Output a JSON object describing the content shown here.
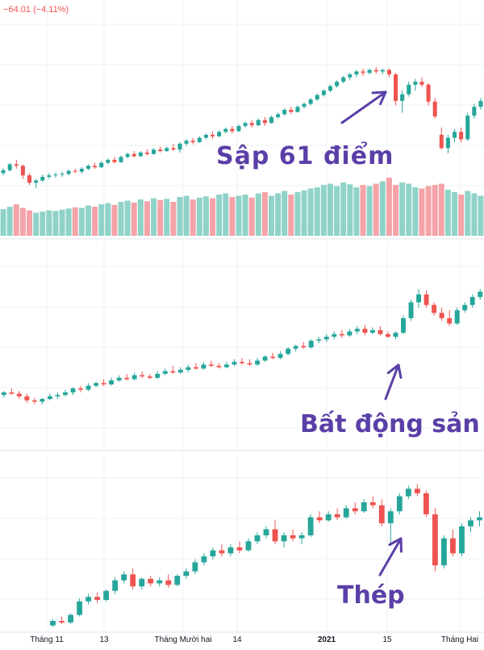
{
  "header": {
    "change_text": "−64.01 (−4.11%)"
  },
  "colors": {
    "up": "#26a69a",
    "down": "#ef5350",
    "vol_up": "#8fd3c8",
    "vol_down": "#f4a3a8",
    "annotation": "#5b3fa8",
    "grid": "#eef0f3",
    "separator": "#e0e3eb"
  },
  "annotations": [
    {
      "id": "crash",
      "text": "Sập 61 điểm"
    },
    {
      "id": "real-estate",
      "text": "Bất động sản"
    },
    {
      "id": "steel",
      "text": "Thép"
    }
  ],
  "x_axis": {
    "ticks": [
      "Tháng 11",
      "13",
      "Tháng Mười hai",
      "14",
      "2021",
      "15",
      "Tháng Hai"
    ],
    "bold_ticks": [
      "2021"
    ]
  },
  "chart_data": [
    {
      "type": "candlestick",
      "panel": "index",
      "title": "",
      "ylim": [
        1010,
        1205
      ],
      "values": [
        [
          1038,
          1045,
          1035,
          1042
        ],
        [
          1042,
          1052,
          1040,
          1050
        ],
        [
          1050,
          1056,
          1044,
          1048
        ],
        [
          1048,
          1050,
          1030,
          1035
        ],
        [
          1035,
          1038,
          1022,
          1025
        ],
        [
          1025,
          1030,
          1018,
          1028
        ],
        [
          1028,
          1036,
          1026,
          1033
        ],
        [
          1033,
          1038,
          1030,
          1035
        ],
        [
          1035,
          1039,
          1032,
          1036
        ],
        [
          1036,
          1040,
          1033,
          1037
        ],
        [
          1037,
          1043,
          1035,
          1041
        ],
        [
          1041,
          1044,
          1038,
          1040
        ],
        [
          1040,
          1046,
          1037,
          1044
        ],
        [
          1044,
          1050,
          1042,
          1048
        ],
        [
          1048,
          1052,
          1044,
          1046
        ],
        [
          1046,
          1054,
          1045,
          1052
        ],
        [
          1052,
          1058,
          1050,
          1056
        ],
        [
          1056,
          1060,
          1051,
          1053
        ],
        [
          1053,
          1062,
          1052,
          1060
        ],
        [
          1060,
          1066,
          1058,
          1064
        ],
        [
          1064,
          1068,
          1059,
          1061
        ],
        [
          1061,
          1068,
          1060,
          1066
        ],
        [
          1066,
          1070,
          1062,
          1064
        ],
        [
          1064,
          1072,
          1063,
          1070
        ],
        [
          1070,
          1074,
          1066,
          1068
        ],
        [
          1068,
          1074,
          1067,
          1072
        ],
        [
          1072,
          1078,
          1068,
          1070
        ],
        [
          1070,
          1080,
          1066,
          1078
        ],
        [
          1078,
          1084,
          1075,
          1082
        ],
        [
          1082,
          1086,
          1077,
          1080
        ],
        [
          1080,
          1088,
          1079,
          1086
        ],
        [
          1086,
          1092,
          1084,
          1090
        ],
        [
          1090,
          1094,
          1085,
          1088
        ],
        [
          1088,
          1096,
          1087,
          1094
        ],
        [
          1094,
          1100,
          1092,
          1098
        ],
        [
          1098,
          1102,
          1092,
          1095
        ],
        [
          1095,
          1104,
          1094,
          1102
        ],
        [
          1102,
          1108,
          1100,
          1106
        ],
        [
          1106,
          1110,
          1100,
          1103
        ],
        [
          1103,
          1112,
          1102,
          1110
        ],
        [
          1110,
          1114,
          1102,
          1106
        ],
        [
          1106,
          1116,
          1105,
          1114
        ],
        [
          1114,
          1120,
          1112,
          1118
        ],
        [
          1118,
          1126,
          1116,
          1124
        ],
        [
          1124,
          1128,
          1118,
          1121
        ],
        [
          1121,
          1130,
          1120,
          1128
        ],
        [
          1128,
          1134,
          1126,
          1132
        ],
        [
          1132,
          1140,
          1130,
          1138
        ],
        [
          1138,
          1146,
          1136,
          1144
        ],
        [
          1144,
          1152,
          1142,
          1150
        ],
        [
          1150,
          1158,
          1148,
          1156
        ],
        [
          1156,
          1164,
          1154,
          1162
        ],
        [
          1162,
          1170,
          1160,
          1168
        ],
        [
          1168,
          1174,
          1164,
          1172
        ],
        [
          1172,
          1178,
          1168,
          1176
        ],
        [
          1176,
          1180,
          1170,
          1174
        ],
        [
          1174,
          1180,
          1172,
          1178
        ],
        [
          1178,
          1182,
          1173,
          1176
        ],
        [
          1176,
          1180,
          1172,
          1178
        ],
        [
          1178,
          1180,
          1168,
          1172
        ],
        [
          1172,
          1174,
          1130,
          1136
        ],
        [
          1136,
          1150,
          1120,
          1145
        ],
        [
          1145,
          1162,
          1142,
          1158
        ],
        [
          1158,
          1166,
          1150,
          1162
        ],
        [
          1162,
          1168,
          1155,
          1158
        ],
        [
          1158,
          1160,
          1130,
          1135
        ],
        [
          1135,
          1140,
          1112,
          1115
        ],
        [
          1090,
          1100,
          1070,
          1072
        ],
        [
          1072,
          1090,
          1065,
          1086
        ],
        [
          1086,
          1098,
          1080,
          1094
        ],
        [
          1094,
          1100,
          1080,
          1084
        ],
        [
          1084,
          1120,
          1082,
          1116
        ],
        [
          1116,
          1132,
          1112,
          1128
        ],
        [
          1128,
          1140,
          1124,
          1136
        ]
      ],
      "volume": {
        "ylim": [
          0,
          100
        ],
        "values": [
          44,
          48,
          52,
          46,
          42,
          38,
          40,
          42,
          41,
          43,
          45,
          47,
          46,
          50,
          48,
          52,
          54,
          51,
          56,
          58,
          55,
          60,
          57,
          62,
          59,
          61,
          56,
          64,
          66,
          60,
          63,
          65,
          62,
          68,
          70,
          64,
          66,
          68,
          63,
          70,
          72,
          66,
          70,
          74,
          68,
          72,
          75,
          78,
          80,
          84,
          86,
          82,
          88,
          85,
          80,
          84,
          82,
          86,
          90,
          96,
          84,
          88,
          86,
          80,
          78,
          82,
          84,
          86,
          76,
          72,
          68,
          74,
          70,
          66
        ]
      }
    },
    {
      "type": "candlestick",
      "panel": "real-estate",
      "title": "",
      "ylim": [
        0,
        100
      ],
      "values": [
        [
          20,
          23,
          18,
          22
        ],
        [
          22,
          25,
          20,
          21
        ],
        [
          21,
          23,
          17,
          19
        ],
        [
          19,
          21,
          14,
          16
        ],
        [
          16,
          18,
          13,
          15
        ],
        [
          15,
          18,
          13,
          17
        ],
        [
          17,
          21,
          16,
          19
        ],
        [
          19,
          22,
          17,
          20
        ],
        [
          20,
          24,
          19,
          22
        ],
        [
          22,
          26,
          20,
          25
        ],
        [
          25,
          27,
          22,
          24
        ],
        [
          24,
          29,
          23,
          27
        ],
        [
          27,
          30,
          26,
          29
        ],
        [
          29,
          32,
          27,
          28
        ],
        [
          28,
          33,
          27,
          31
        ],
        [
          31,
          35,
          30,
          33
        ],
        [
          33,
          36,
          31,
          32
        ],
        [
          32,
          37,
          31,
          35
        ],
        [
          35,
          38,
          33,
          34
        ],
        [
          34,
          36,
          32,
          33
        ],
        [
          33,
          38,
          32,
          36
        ],
        [
          36,
          40,
          35,
          38
        ],
        [
          38,
          42,
          36,
          37
        ],
        [
          37,
          41,
          36,
          39
        ],
        [
          39,
          43,
          37,
          41
        ],
        [
          41,
          44,
          39,
          40
        ],
        [
          40,
          45,
          39,
          43
        ],
        [
          43,
          46,
          41,
          42
        ],
        [
          42,
          44,
          40,
          41
        ],
        [
          41,
          45,
          40,
          43
        ],
        [
          43,
          47,
          42,
          45
        ],
        [
          45,
          48,
          43,
          44
        ],
        [
          44,
          47,
          42,
          43
        ],
        [
          43,
          48,
          42,
          46
        ],
        [
          46,
          50,
          45,
          49
        ],
        [
          49,
          52,
          47,
          48
        ],
        [
          48,
          53,
          47,
          51
        ],
        [
          51,
          56,
          50,
          55
        ],
        [
          55,
          58,
          53,
          57
        ],
        [
          57,
          60,
          55,
          56
        ],
        [
          56,
          62,
          55,
          61
        ],
        [
          61,
          64,
          59,
          62
        ],
        [
          62,
          66,
          60,
          64
        ],
        [
          64,
          68,
          62,
          66
        ],
        [
          66,
          69,
          63,
          65
        ],
        [
          65,
          70,
          64,
          68
        ],
        [
          68,
          72,
          66,
          70
        ],
        [
          70,
          73,
          65,
          67
        ],
        [
          67,
          71,
          66,
          69
        ],
        [
          69,
          72,
          65,
          66
        ],
        [
          66,
          68,
          63,
          64
        ],
        [
          64,
          68,
          62,
          67
        ],
        [
          67,
          80,
          66,
          78
        ],
        [
          78,
          92,
          76,
          90
        ],
        [
          90,
          100,
          86,
          96
        ],
        [
          96,
          99,
          86,
          88
        ],
        [
          88,
          90,
          80,
          82
        ],
        [
          82,
          86,
          76,
          78
        ],
        [
          78,
          84,
          72,
          74
        ],
        [
          74,
          86,
          73,
          84
        ],
        [
          84,
          90,
          82,
          88
        ],
        [
          88,
          96,
          86,
          94
        ],
        [
          94,
          100,
          92,
          98
        ]
      ]
    },
    {
      "type": "candlestick",
      "panel": "steel",
      "title": "",
      "ylim": [
        0,
        100
      ],
      "values": [
        [
          4,
          8,
          3,
          7
        ],
        [
          7,
          10,
          5,
          6
        ],
        [
          6,
          12,
          5,
          11
        ],
        [
          11,
          22,
          10,
          20
        ],
        [
          20,
          25,
          18,
          23
        ],
        [
          23,
          26,
          19,
          21
        ],
        [
          21,
          28,
          20,
          27
        ],
        [
          27,
          36,
          25,
          34
        ],
        [
          34,
          40,
          32,
          38
        ],
        [
          38,
          42,
          28,
          30
        ],
        [
          30,
          36,
          28,
          35
        ],
        [
          35,
          37,
          30,
          32
        ],
        [
          32,
          36,
          30,
          34
        ],
        [
          34,
          38,
          29,
          31
        ],
        [
          31,
          38,
          30,
          37
        ],
        [
          37,
          42,
          35,
          40
        ],
        [
          40,
          48,
          38,
          46
        ],
        [
          46,
          52,
          44,
          50
        ],
        [
          50,
          56,
          48,
          54
        ],
        [
          54,
          58,
          50,
          52
        ],
        [
          52,
          58,
          50,
          56
        ],
        [
          56,
          60,
          52,
          54
        ],
        [
          54,
          62,
          53,
          60
        ],
        [
          60,
          66,
          58,
          64
        ],
        [
          64,
          70,
          62,
          68
        ],
        [
          68,
          74,
          58,
          60
        ],
        [
          60,
          66,
          56,
          64
        ],
        [
          64,
          68,
          60,
          62
        ],
        [
          62,
          66,
          58,
          64
        ],
        [
          64,
          78,
          63,
          76
        ],
        [
          76,
          80,
          72,
          74
        ],
        [
          74,
          80,
          73,
          78
        ],
        [
          78,
          82,
          74,
          76
        ],
        [
          76,
          84,
          75,
          82
        ],
        [
          82,
          86,
          78,
          80
        ],
        [
          80,
          88,
          79,
          86
        ],
        [
          86,
          90,
          82,
          84
        ],
        [
          84,
          88,
          70,
          72
        ],
        [
          72,
          82,
          58,
          80
        ],
        [
          80,
          92,
          78,
          90
        ],
        [
          90,
          97,
          88,
          95
        ],
        [
          95,
          98,
          90,
          92
        ],
        [
          92,
          94,
          76,
          78
        ],
        [
          78,
          82,
          40,
          44
        ],
        [
          44,
          64,
          42,
          62
        ],
        [
          62,
          68,
          50,
          52
        ],
        [
          52,
          72,
          50,
          70
        ],
        [
          70,
          76,
          66,
          74
        ],
        [
          74,
          80,
          70,
          76
        ]
      ]
    }
  ]
}
